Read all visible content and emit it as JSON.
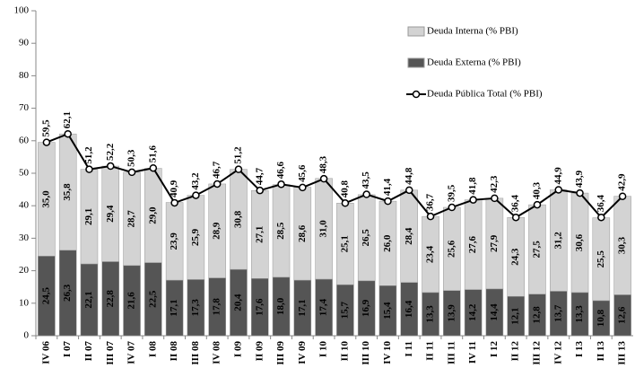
{
  "chart_data": {
    "type": "stacked-bar-line",
    "categories": [
      "IV 06",
      "I 07",
      "II 07",
      "III 07",
      "IV 07",
      "I 08",
      "II 08",
      "III 08",
      "IV 08",
      "I 09",
      "II 09",
      "III 09",
      "IV 09",
      "I 10",
      "II 10",
      "III 10",
      "IV 10",
      "I 11",
      "II 11",
      "III 11",
      "IV 11",
      "I 12",
      "II 12",
      "III 12",
      "IV 12",
      "I 13",
      "II 13",
      "III 13"
    ],
    "series": [
      {
        "name": "Deuda Interna (% PBI)",
        "type": "bar",
        "color": "#d3d3d3",
        "values": [
          35.0,
          35.8,
          29.1,
          29.4,
          28.7,
          29.0,
          23.9,
          25.9,
          28.9,
          30.8,
          27.1,
          28.5,
          28.6,
          31.0,
          25.1,
          26.5,
          26.0,
          28.4,
          23.4,
          25.6,
          27.6,
          27.9,
          24.3,
          27.5,
          31.2,
          30.6,
          25.5,
          30.3
        ],
        "value_labels": [
          "35,0",
          "35,8",
          "29,1",
          "29,4",
          "28,7",
          "29,0",
          "23,9",
          "25,9",
          "28,9",
          "30,8",
          "27,1",
          "28,5",
          "28,6",
          "31,0",
          "25,1",
          "26,5",
          "26,0",
          "28,4",
          "23,4",
          "25,6",
          "27,6",
          "27,9",
          "24,3",
          "27,5",
          "31,2",
          "30,6",
          "25,5",
          "30,3"
        ]
      },
      {
        "name": "Deuda Externa (% PBI)",
        "type": "bar",
        "color": "#555555",
        "values": [
          24.5,
          26.3,
          22.1,
          22.8,
          21.6,
          22.5,
          17.1,
          17.3,
          17.8,
          20.4,
          17.6,
          18.0,
          17.1,
          17.4,
          15.7,
          16.9,
          15.4,
          16.4,
          13.3,
          13.9,
          14.2,
          14.4,
          12.1,
          12.8,
          13.7,
          13.3,
          10.8,
          12.6
        ],
        "value_labels": [
          "24,5",
          "26,3",
          "22,1",
          "22,8",
          "21,6",
          "22,5",
          "17,1",
          "17,3",
          "17,8",
          "20,4",
          "17,6",
          "18,0",
          "17,1",
          "17,4",
          "15,7",
          "16,9",
          "15,4",
          "16,4",
          "13,3",
          "13,9",
          "14,2",
          "14,4",
          "12,1",
          "12,8",
          "13,7",
          "13,3",
          "10,8",
          "12,6"
        ]
      },
      {
        "name": "Deuda Pública Total (% PBI)",
        "type": "line",
        "color": "#000000",
        "values": [
          59.5,
          62.1,
          51.2,
          52.2,
          50.3,
          51.6,
          40.9,
          43.2,
          46.7,
          51.2,
          44.7,
          46.6,
          45.6,
          48.3,
          40.8,
          43.5,
          41.4,
          44.8,
          36.7,
          39.5,
          41.8,
          42.3,
          36.4,
          40.3,
          44.9,
          43.9,
          36.4,
          42.9
        ],
        "value_labels": [
          "59,5",
          "62,1",
          "51,2",
          "52,2",
          "50,3",
          "51,6",
          "40,9",
          "43,2",
          "46,7",
          "51,2",
          "44,7",
          "46,6",
          "45,6",
          "48,3",
          "40,8",
          "43,5",
          "41,4",
          "44,8",
          "36,7",
          "39,5",
          "41,8",
          "42,3",
          "36,4",
          "40,3",
          "44,9",
          "43,9",
          "36,4",
          "42,9"
        ]
      }
    ],
    "ylim": [
      0,
      100
    ],
    "yticks": [
      0,
      10,
      20,
      30,
      40,
      50,
      60,
      70,
      80,
      90,
      100
    ],
    "grid": false,
    "legend": "top-right"
  }
}
